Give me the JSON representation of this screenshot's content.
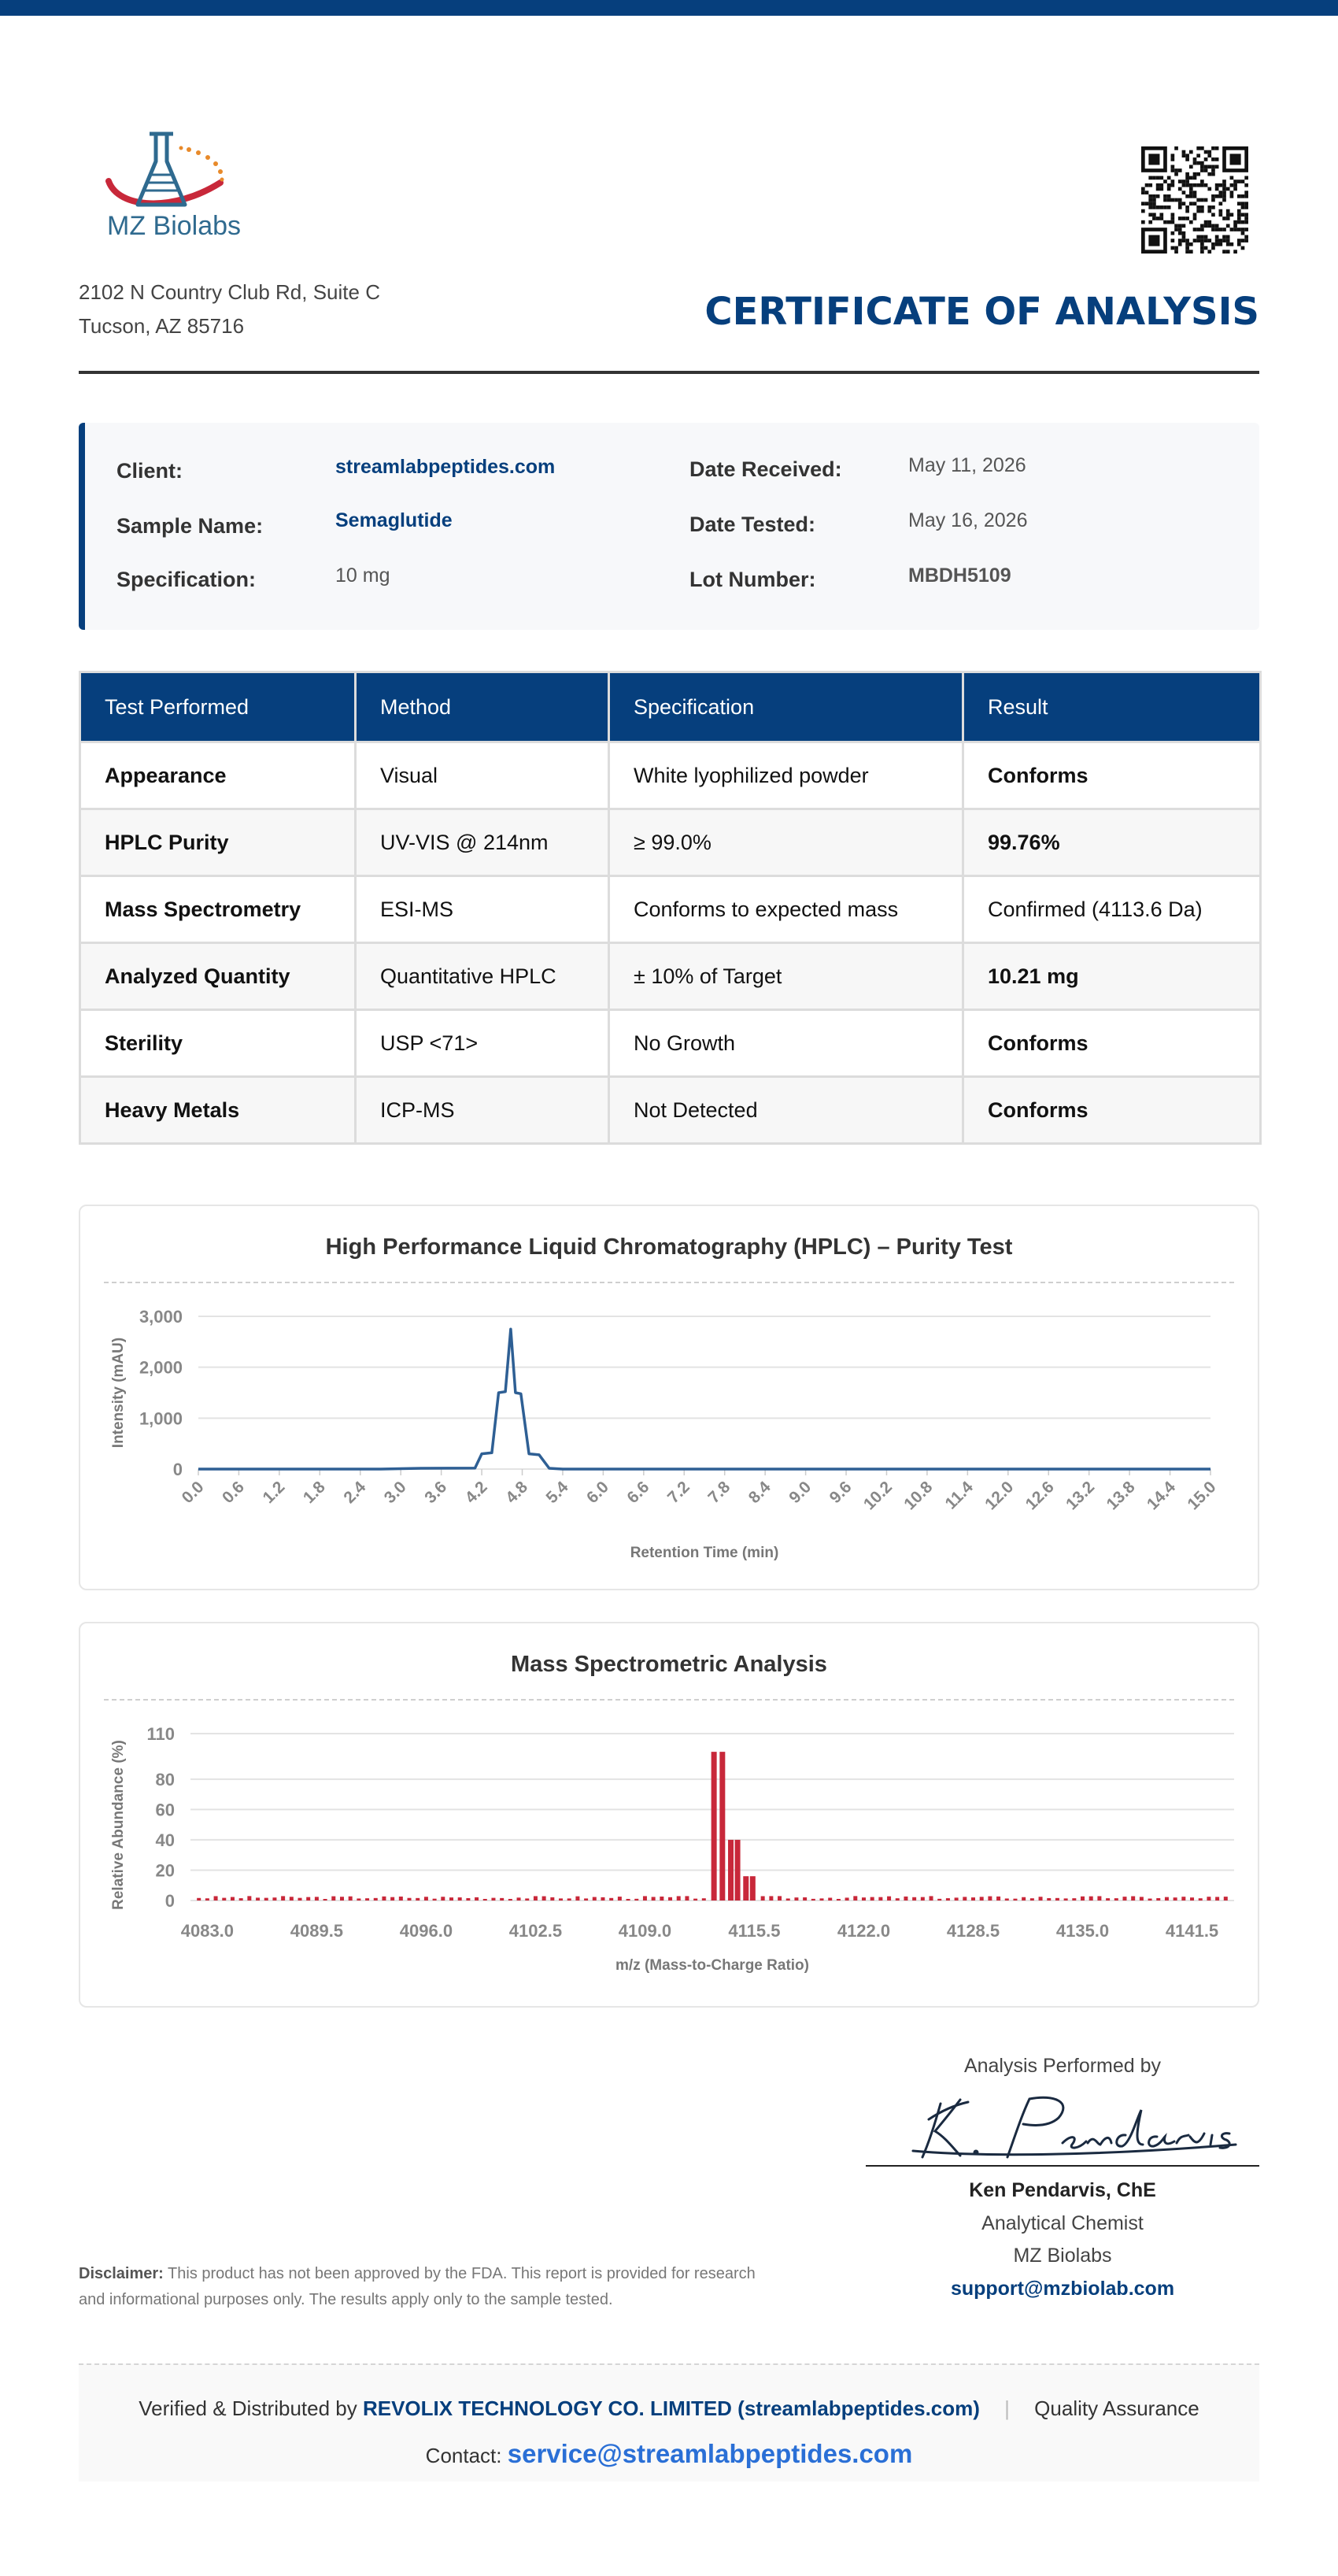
{
  "header": {
    "logo_text": "MZ Biolabs",
    "address_line1": "2102 N Country Club Rd, Suite C",
    "address_line2": "Tucson, AZ 85716",
    "title": "CERTIFICATE OF ANALYSIS"
  },
  "info": {
    "client_label": "Client:",
    "client_value": "streamlabpeptides.com",
    "sample_label": "Sample Name:",
    "sample_value": "Semaglutide",
    "spec_label": "Specification:",
    "spec_value": "10 mg",
    "received_label": "Date Received:",
    "received_value": "May 11, 2026",
    "tested_label": "Date Tested:",
    "tested_value": "May 16, 2026",
    "lot_label": "Lot Number:",
    "lot_value": "MBDH5109"
  },
  "tests": {
    "headers": [
      "Test Performed",
      "Method",
      "Specification",
      "Result"
    ],
    "rows": [
      [
        "Appearance",
        "Visual",
        "White lyophilized powder",
        "Conforms"
      ],
      [
        "HPLC Purity",
        "UV-VIS @ 214nm",
        "≥ 99.0%",
        "99.76%"
      ],
      [
        "Mass Spectrometry",
        "ESI-MS",
        "Conforms to expected mass",
        "Confirmed (4113.6 Da)"
      ],
      [
        "Analyzed Quantity",
        "Quantitative HPLC",
        "± 10% of Target",
        "10.21 mg"
      ],
      [
        "Sterility",
        "USP <71>",
        "No Growth",
        "Conforms"
      ],
      [
        "Heavy Metals",
        "ICP-MS",
        "Not Detected",
        "Conforms"
      ]
    ]
  },
  "chart_data": [
    {
      "type": "line",
      "title": "High Performance Liquid Chromatography (HPLC) – Purity Test",
      "xlabel": "Retention Time (min)",
      "ylabel": "Intensity (mAU)",
      "ylim": [
        0,
        3000
      ],
      "yticks": [
        "0",
        "1,000",
        "2,000",
        "3,000"
      ],
      "xticks": [
        "0.0",
        "0.6",
        "1.2",
        "1.8",
        "2.4",
        "3.0",
        "3.6",
        "4.2",
        "4.8",
        "5.4",
        "6.0",
        "6.6",
        "7.2",
        "7.8",
        "8.4",
        "9.0",
        "9.6",
        "10.2",
        "10.8",
        "11.4",
        "12.0",
        "12.6",
        "13.2",
        "13.8",
        "14.4",
        "15.0"
      ],
      "grid": true,
      "color": "#2e5f94",
      "series": [
        {
          "x": [
            0.0,
            2.7,
            3.3,
            4.1,
            4.2,
            4.35,
            4.45,
            4.55,
            4.63,
            4.7,
            4.78,
            4.9,
            5.05,
            5.2,
            5.4,
            15.0
          ],
          "y": [
            0,
            0,
            15,
            20,
            300,
            320,
            1500,
            1520,
            2750,
            1500,
            1480,
            300,
            280,
            15,
            0,
            0
          ]
        }
      ]
    },
    {
      "type": "bar",
      "title": "Mass Spectrometric Analysis",
      "xlabel": "m/z (Mass-to-Charge Ratio)",
      "ylabel": "Relative Abundance (%)",
      "ylim": [
        0,
        110
      ],
      "yticks": [
        "0",
        "20",
        "40",
        "60",
        "80",
        "110"
      ],
      "xticks": [
        "4083.0",
        "4089.5",
        "4096.0",
        "4102.5",
        "4109.0",
        "4115.5",
        "4122.0",
        "4128.5",
        "4135.0",
        "4141.5"
      ],
      "xlim": [
        4082.0,
        4144.0
      ],
      "grid": true,
      "color": "#c8283a",
      "peaks": [
        {
          "x": 4113.1,
          "y": 98
        },
        {
          "x": 4113.6,
          "y": 98
        },
        {
          "x": 4114.1,
          "y": 40
        },
        {
          "x": 4114.5,
          "y": 40
        },
        {
          "x": 4115.0,
          "y": 16
        },
        {
          "x": 4115.4,
          "y": 16
        }
      ],
      "noise_level": 2.5
    }
  ],
  "signature": {
    "performed_by": "Analysis Performed by",
    "name": "Ken Pendarvis, ChE",
    "role": "Analytical Chemist",
    "org": "MZ Biolabs",
    "email": "support@mzbiolab.com"
  },
  "disclaimer": {
    "label": "Disclaimer:",
    "text": "This product has not been approved by the FDA. This report is provided for research and informational purposes only. The results apply only to the sample tested."
  },
  "footer": {
    "verified_prefix": "Verified & Distributed by",
    "company": "REVOLIX TECHNOLOGY CO. LIMITED (streamlabpeptides.com)",
    "qa": "Quality Assurance",
    "contact_label": "Contact:",
    "contact_email": "service@streamlabpeptides.com"
  },
  "colors": {
    "brand": "#063f7d",
    "success": "#22a33a",
    "ms_bar": "#c8283a",
    "hplc_line": "#2e5f94"
  }
}
